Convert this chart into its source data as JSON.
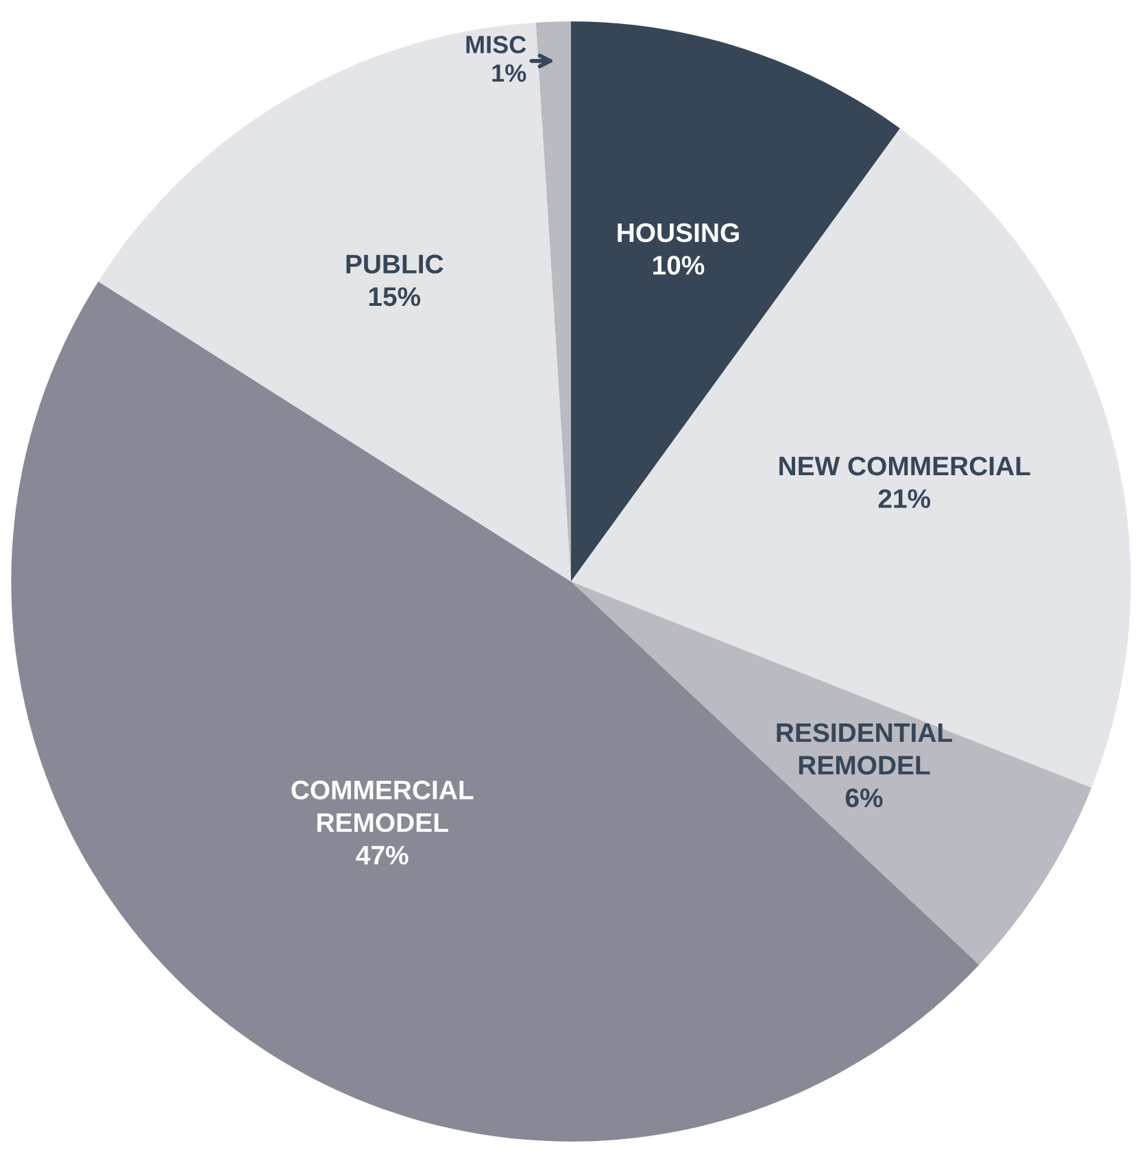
{
  "chart_data": {
    "type": "pie",
    "categories": [
      "HOUSING",
      "NEW COMMERCIAL",
      "RESIDENTIAL\nREMODEL",
      "COMMERCIAL\nREMODEL",
      "PUBLIC",
      "MISC"
    ],
    "values": [
      10,
      21,
      6,
      47,
      15,
      1
    ],
    "colors": [
      "#374657",
      "#e4e5e9",
      "#b9bac2",
      "#878a96",
      "#e4e5e9",
      "#b9bac2"
    ],
    "value_labels": [
      "10%",
      "21%",
      "6%",
      "47%",
      "15%",
      "1%"
    ],
    "legend": false
  }
}
